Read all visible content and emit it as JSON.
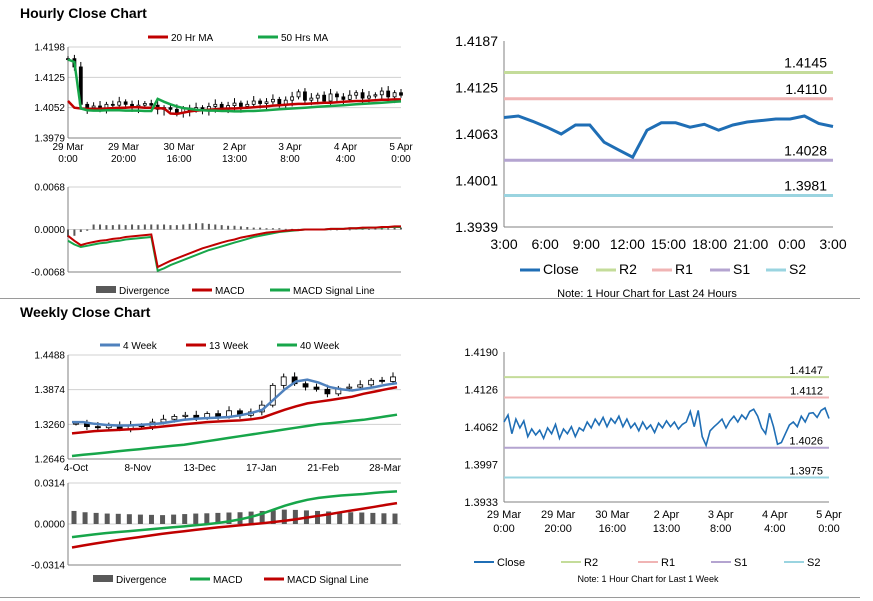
{
  "hourly_title": "Hourly Close Chart",
  "weekly_title": "Weekly Close Chart",
  "colors": {
    "ma20": "#c00000",
    "ma50": "#17a64a",
    "candle": "#000000",
    "close": "#1f6eb5",
    "r2": "#c4dc9a",
    "r1": "#f0b4b4",
    "s1": "#b4a4d0",
    "s2": "#9ad4e0",
    "divergence": "#595959"
  },
  "chart_data": [
    {
      "id": "hourly_price",
      "type": "candlestick",
      "legend": [
        "20 Hr MA",
        "50 Hrs MA"
      ],
      "y_ticks": [
        "1.4198",
        "1.4125",
        "1.4052",
        "1.3979"
      ],
      "ylim": [
        1.3979,
        1.4198
      ],
      "x_ticks": [
        [
          "29 Mar",
          "0:00"
        ],
        [
          "29 Mar",
          "20:00"
        ],
        [
          "30 Mar",
          "16:00"
        ],
        [
          "2 Apr",
          "13:00"
        ],
        [
          "3 Apr",
          "8:00"
        ],
        [
          "4 Apr",
          "4:00"
        ],
        [
          "5 Apr",
          "0:00"
        ]
      ],
      "series": [
        {
          "name": "20 Hr MA",
          "values": [
            1.4068,
            1.4052,
            1.405,
            1.4049,
            1.4049,
            1.4049,
            1.405,
            1.4051,
            1.4052,
            1.4052,
            1.4053,
            1.4053,
            1.4052,
            1.4052,
            1.4051,
            1.405,
            1.4038,
            1.4037,
            1.404,
            1.4043,
            1.4045,
            1.4046,
            1.4047,
            1.4048,
            1.4049,
            1.405,
            1.405,
            1.4051,
            1.4052,
            1.4053,
            1.4054,
            1.4055,
            1.4057,
            1.4058,
            1.4059,
            1.406,
            1.4061,
            1.4061,
            1.4062,
            1.4063,
            1.4064,
            1.4064,
            1.4065,
            1.4066,
            1.4067,
            1.4068,
            1.4068,
            1.4069,
            1.407,
            1.4071,
            1.4071,
            1.4072,
            1.4072
          ]
        },
        {
          "name": "50 Hrs MA",
          "values": [
            1.4168,
            1.4162,
            1.405,
            1.4046,
            1.4045,
            1.4045,
            1.4046,
            1.4046,
            1.4046,
            1.4045,
            1.4045,
            1.4045,
            1.4044,
            1.4044,
            1.4073,
            1.4066,
            1.406,
            1.4055,
            1.4051,
            1.4049,
            1.4047,
            1.4046,
            1.4045,
            1.4045,
            1.4044,
            1.4044,
            1.4043,
            1.4043,
            1.4044,
            1.4044,
            1.4045,
            1.4046,
            1.4047,
            1.4048,
            1.4049,
            1.405,
            1.4051,
            1.4052,
            1.4053,
            1.4054,
            1.4055,
            1.4056,
            1.4057,
            1.4058,
            1.4059,
            1.406,
            1.4061,
            1.4062,
            1.4063,
            1.4064,
            1.4065,
            1.4066,
            1.4067
          ]
        },
        {
          "name": "Close",
          "values": [
            1.417,
            1.415,
            1.406,
            1.4052,
            1.4056,
            1.405,
            1.406,
            1.4058,
            1.4066,
            1.406,
            1.4054,
            1.4058,
            1.4062,
            1.4058,
            1.4048,
            1.4052,
            1.4048,
            1.404,
            1.405,
            1.4046,
            1.4052,
            1.4045,
            1.4055,
            1.406,
            1.4048,
            1.4057,
            1.4063,
            1.4055,
            1.406,
            1.4068,
            1.4062,
            1.4066,
            1.4072,
            1.4061,
            1.407,
            1.4078,
            1.409,
            1.407,
            1.4075,
            1.4082,
            1.4068,
            1.4085,
            1.4078,
            1.4072,
            1.4082,
            1.4088,
            1.4075,
            1.408,
            1.4083,
            1.4092,
            1.4078,
            1.4088,
            1.4082
          ]
        }
      ]
    },
    {
      "id": "hourly_macd",
      "type": "macd",
      "legend": [
        "Divergence",
        "MACD",
        "MACD Signal Line"
      ],
      "y_ticks": [
        "0.0068",
        "0.0000",
        "-0.0068"
      ],
      "ylim": [
        -0.0068,
        0.0068
      ],
      "series": [
        {
          "name": "Divergence",
          "values": [
            -0.0012,
            -0.001,
            -0.0004,
            -0.0002,
            0.0008,
            0.0008,
            0.0007,
            0.0007,
            0.0008,
            0.0007,
            0.0008,
            0.0007,
            0.0008,
            0.0008,
            0.0008,
            0.0008,
            0.0007,
            0.0007,
            0.0008,
            0.0009,
            0.001,
            0.001,
            0.0009,
            0.0008,
            0.0007,
            0.0006,
            0.0006,
            0.0005,
            0.0004,
            0.0003,
            0.0003,
            0.0002,
            0.0002,
            0.0002,
            0.0001,
            0.0001,
            0.0001,
            -0.0001,
            -0.0001,
            -0.0001,
            0.0,
            -0.0001,
            0.0,
            0.0001,
            0.0,
            0.0002,
            0.0001,
            0.0001,
            0.0002,
            0.0003,
            0.0002,
            0.0003,
            0.0003
          ]
        },
        {
          "name": "MACD",
          "values": [
            -0.001,
            -0.0018,
            -0.0025,
            -0.0022,
            -0.002,
            -0.0018,
            -0.0017,
            -0.0015,
            -0.0014,
            -0.0012,
            -0.0011,
            -0.001,
            -0.0009,
            -0.0008,
            -0.006,
            -0.0055,
            -0.005,
            -0.0046,
            -0.0042,
            -0.0038,
            -0.0034,
            -0.003,
            -0.0027,
            -0.0024,
            -0.0021,
            -0.0018,
            -0.0016,
            -0.0013,
            -0.0011,
            -0.0009,
            -0.0007,
            -0.0005,
            -0.0004,
            -0.0003,
            -0.0002,
            -0.0001,
            -0.0001,
            0.0,
            0.0,
            0.0,
            0.0,
            0.0001,
            0.0001,
            0.0001,
            0.0002,
            0.0002,
            0.0003,
            0.0003,
            0.0003,
            0.0004,
            0.0004,
            0.0005,
            0.0005
          ]
        },
        {
          "name": "MACD Signal Line",
          "values": [
            -0.0018,
            -0.0024,
            -0.0028,
            -0.0026,
            -0.0024,
            -0.0022,
            -0.0021,
            -0.0019,
            -0.0018,
            -0.0016,
            -0.0015,
            -0.0014,
            -0.0013,
            -0.0012,
            -0.0066,
            -0.0062,
            -0.0057,
            -0.0053,
            -0.0049,
            -0.0045,
            -0.0041,
            -0.0037,
            -0.0033,
            -0.003,
            -0.0027,
            -0.0024,
            -0.0021,
            -0.0018,
            -0.0015,
            -0.0012,
            -0.001,
            -0.0008,
            -0.0006,
            -0.0004,
            -0.0003,
            -0.0002,
            -0.0001,
            0.0,
            0.0,
            0.0,
            0.0,
            0.0001,
            0.0001,
            0.0001,
            0.0002,
            0.0002,
            0.0002,
            0.0003,
            0.0003,
            0.0003,
            0.0004,
            0.0004,
            0.0004
          ]
        }
      ]
    },
    {
      "id": "hourly_close_24h",
      "type": "line",
      "y_ticks": [
        "1.4187",
        "1.4125",
        "1.4063",
        "1.4001",
        "1.3939"
      ],
      "ylim": [
        1.3939,
        1.4187
      ],
      "x_ticks": [
        "3:00",
        "6:00",
        "9:00",
        "12:00",
        "15:00",
        "18:00",
        "21:00",
        "0:00",
        "3:00"
      ],
      "levels": [
        {
          "name": "R2",
          "value": 1.4145,
          "label": "1.4145"
        },
        {
          "name": "R1",
          "value": 1.411,
          "label": "1.4110"
        },
        {
          "name": "S1",
          "value": 1.4028,
          "label": "1.4028"
        },
        {
          "name": "S2",
          "value": 1.3981,
          "label": "1.3981"
        }
      ],
      "close": [
        1.4085,
        1.4087,
        1.408,
        1.4072,
        1.4063,
        1.4075,
        1.4075,
        1.4052,
        1.4042,
        1.4032,
        1.4068,
        1.4078,
        1.4078,
        1.4072,
        1.4076,
        1.4068,
        1.4075,
        1.4079,
        1.4081,
        1.4083,
        1.4083,
        1.4087,
        1.4077,
        1.4073
      ],
      "legend": [
        "Close",
        "R2",
        "R1",
        "S1",
        "S2"
      ],
      "note": "Note: 1 Hour Chart for Last 24 Hours"
    },
    {
      "id": "weekly_price",
      "type": "candlestick",
      "legend": [
        "4 Week",
        "13 Week",
        "40 Week"
      ],
      "y_ticks": [
        "1.4488",
        "1.3874",
        "1.3260",
        "1.2646"
      ],
      "ylim": [
        1.2646,
        1.4488
      ],
      "x_ticks": [
        "4-Oct",
        "8-Nov",
        "13-Dec",
        "17-Jan",
        "21-Feb",
        "28-Mar"
      ],
      "series": [
        {
          "name": "4 Week",
          "values": [
            1.33,
            1.33,
            1.327,
            1.325,
            1.324,
            1.324,
            1.325,
            1.326,
            1.328,
            1.331,
            1.334,
            1.336,
            1.337,
            1.338,
            1.339,
            1.342,
            1.346,
            1.352,
            1.37,
            1.388,
            1.402,
            1.405,
            1.4,
            1.392,
            1.388,
            1.386,
            1.389,
            1.392,
            1.396,
            1.399
          ]
        },
        {
          "name": "13 Week",
          "values": [
            1.31,
            1.312,
            1.314,
            1.315,
            1.316,
            1.317,
            1.318,
            1.32,
            1.322,
            1.324,
            1.326,
            1.328,
            1.33,
            1.331,
            1.332,
            1.333,
            1.335,
            1.338,
            1.345,
            1.352,
            1.358,
            1.363,
            1.366,
            1.369,
            1.372,
            1.375,
            1.38,
            1.384,
            1.388,
            1.392
          ]
        },
        {
          "name": "40 Week",
          "values": [
            1.27,
            1.272,
            1.274,
            1.276,
            1.278,
            1.28,
            1.282,
            1.284,
            1.286,
            1.288,
            1.29,
            1.293,
            1.296,
            1.299,
            1.302,
            1.305,
            1.308,
            1.311,
            1.314,
            1.317,
            1.32,
            1.323,
            1.326,
            1.328,
            1.33,
            1.332,
            1.334,
            1.337,
            1.34,
            1.343
          ]
        },
        {
          "name": "Close",
          "values": [
            1.328,
            1.322,
            1.32,
            1.325,
            1.318,
            1.324,
            1.322,
            1.33,
            1.335,
            1.34,
            1.342,
            1.338,
            1.345,
            1.34,
            1.35,
            1.342,
            1.348,
            1.36,
            1.395,
            1.41,
            1.398,
            1.392,
            1.388,
            1.38,
            1.39,
            1.392,
            1.396,
            1.404,
            1.402,
            1.41
          ]
        }
      ]
    },
    {
      "id": "weekly_macd",
      "type": "macd",
      "legend": [
        "Divergence",
        "MACD",
        "MACD Signal Line"
      ],
      "y_ticks": [
        "0.0314",
        "0.0000",
        "-0.0314"
      ],
      "ylim": [
        -0.0314,
        0.0314
      ],
      "series": [
        {
          "name": "Divergence",
          "values": [
            0.01,
            0.009,
            0.0085,
            0.008,
            0.0078,
            0.0075,
            0.0072,
            0.007,
            0.0068,
            0.0072,
            0.0076,
            0.008,
            0.0082,
            0.0085,
            0.0088,
            0.009,
            0.0095,
            0.01,
            0.0105,
            0.011,
            0.0108,
            0.0104,
            0.01,
            0.0096,
            0.0092,
            0.009,
            0.0088,
            0.0085,
            0.0082,
            0.008
          ]
        },
        {
          "name": "MACD",
          "values": [
            -0.01,
            -0.009,
            -0.008,
            -0.007,
            -0.0062,
            -0.0055,
            -0.0048,
            -0.004,
            -0.0032,
            -0.0025,
            -0.0018,
            -0.001,
            -0.0002,
            0.0008,
            0.002,
            0.0035,
            0.0055,
            0.008,
            0.011,
            0.014,
            0.0165,
            0.0185,
            0.02,
            0.021,
            0.0218,
            0.0224,
            0.023,
            0.0238,
            0.0245,
            0.025
          ]
        },
        {
          "name": "MACD Signal Line",
          "values": [
            -0.018,
            -0.0165,
            -0.015,
            -0.0137,
            -0.0124,
            -0.0112,
            -0.01,
            -0.0088,
            -0.0076,
            -0.0065,
            -0.0055,
            -0.0045,
            -0.0035,
            -0.0026,
            -0.0018,
            -0.001,
            -0.0002,
            0.0006,
            0.0015,
            0.0025,
            0.0037,
            0.005,
            0.0063,
            0.0076,
            0.009,
            0.0104,
            0.0118,
            0.0132,
            0.0146,
            0.016
          ]
        }
      ]
    },
    {
      "id": "hourly_close_week",
      "type": "line",
      "y_ticks": [
        "1.4190",
        "1.4126",
        "1.4062",
        "1.3997",
        "1.3933"
      ],
      "ylim": [
        1.3933,
        1.419
      ],
      "x_ticks": [
        [
          "29 Mar",
          "0:00"
        ],
        [
          "29 Mar",
          "20:00"
        ],
        [
          "30 Mar",
          "16:00"
        ],
        [
          "2 Apr",
          "13:00"
        ],
        [
          "3 Apr",
          "8:00"
        ],
        [
          "4 Apr",
          "4:00"
        ],
        [
          "5 Apr",
          "0:00"
        ]
      ],
      "levels": [
        {
          "name": "R2",
          "value": 1.4147,
          "label": "1.4147"
        },
        {
          "name": "R1",
          "value": 1.4112,
          "label": "1.4112"
        },
        {
          "name": "S1",
          "value": 1.4026,
          "label": "1.4026"
        },
        {
          "name": "S2",
          "value": 1.3975,
          "label": "1.3975"
        }
      ],
      "close": [
        1.407,
        1.4082,
        1.405,
        1.4075,
        1.406,
        1.4072,
        1.4045,
        1.4058,
        1.4048,
        1.4056,
        1.4042,
        1.406,
        1.405,
        1.4066,
        1.4042,
        1.4058,
        1.405,
        1.4062,
        1.4045,
        1.406,
        1.4055,
        1.407,
        1.406,
        1.4075,
        1.4065,
        1.4078,
        1.4062,
        1.4076,
        1.4068,
        1.408,
        1.4062,
        1.4075,
        1.406,
        1.4068,
        1.4055,
        1.407,
        1.4058,
        1.4065,
        1.4052,
        1.4068,
        1.406,
        1.4072,
        1.4062,
        1.407,
        1.4058,
        1.4066,
        1.407,
        1.4088,
        1.4062,
        1.409,
        1.4045,
        1.403,
        1.4055,
        1.4062,
        1.4068,
        1.4075,
        1.406,
        1.4072,
        1.408,
        1.407,
        1.4082,
        1.4075,
        1.4088,
        1.4092,
        1.408,
        1.406,
        1.405,
        1.4085,
        1.4062,
        1.4032,
        1.4035,
        1.405,
        1.4065,
        1.407,
        1.4062,
        1.408,
        1.407,
        1.4085,
        1.4086,
        1.4078,
        1.409,
        1.4094,
        1.4076
      ],
      "legend": [
        "Close",
        "R2",
        "R1",
        "S1",
        "S2"
      ],
      "note": "Note: 1 Hour Chart for Last 1 Week"
    }
  ]
}
